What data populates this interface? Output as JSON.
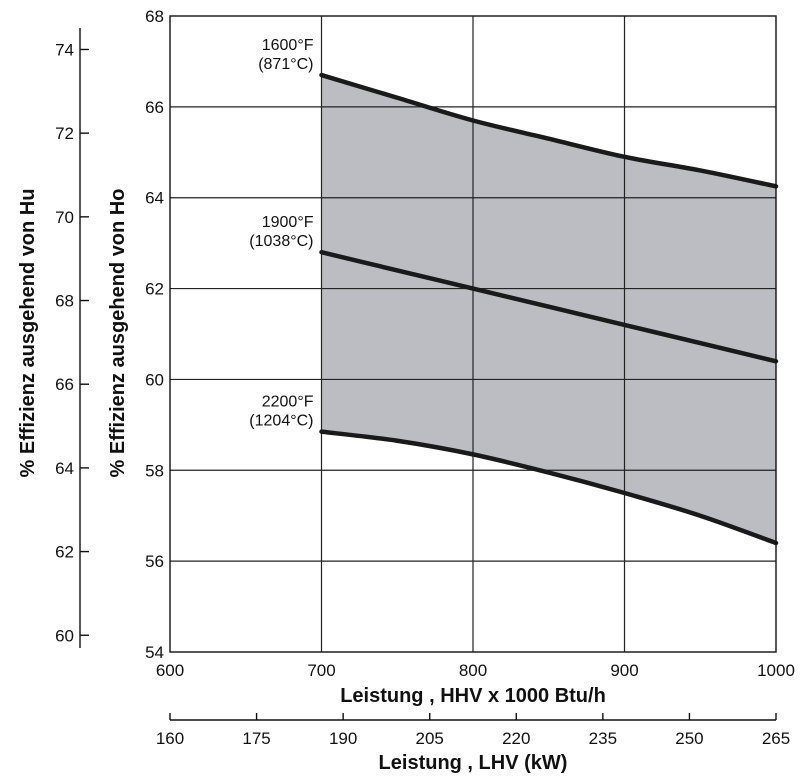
{
  "chart_data": {
    "type": "line",
    "xlabel": "Leistung , HHV x 1000 Btu/h",
    "xlim": [
      600,
      1000
    ],
    "xticks": [
      "600",
      "700",
      "800",
      "900",
      "1000"
    ],
    "ylabel": "% Effizienz ausgehend von Ho",
    "ylim": [
      54,
      68
    ],
    "yticks": [
      "54",
      "56",
      "58",
      "60",
      "62",
      "64",
      "66",
      "68"
    ],
    "ylabel_secondary": "% Effizienz ausgehend von Hu",
    "ylim_secondary": [
      59.6,
      74.8
    ],
    "yticks_secondary": [
      "60",
      "62",
      "64",
      "66",
      "68",
      "70",
      "72",
      "74"
    ],
    "xlabel_secondary": "Leistung , LHV (kW)",
    "xlim_secondary": [
      160,
      265
    ],
    "xticks_secondary": [
      "160",
      "175",
      "190",
      "205",
      "220",
      "235",
      "250",
      "265"
    ],
    "grid": true,
    "shaded_region": {
      "between": [
        "1600°F (871°C)",
        "2200°F (1204°C)"
      ],
      "x": [
        700,
        1000
      ],
      "color": "#bcbdc2"
    },
    "x": [
      700,
      750,
      800,
      850,
      900,
      950,
      1000
    ],
    "series": [
      {
        "name": "1600°F (871°C)",
        "label_line1": "1600°F",
        "label_line2": "(871°C)",
        "values": [
          66.7,
          66.2,
          65.7,
          65.3,
          64.9,
          64.6,
          64.25
        ]
      },
      {
        "name": "1900°F (1038°C)",
        "label_line1": "1900°F",
        "label_line2": "(1038°C)",
        "values": [
          62.8,
          62.4,
          62.0,
          61.6,
          61.2,
          60.8,
          60.4
        ]
      },
      {
        "name": "2200°F (1204°C)",
        "label_line1": "2200°F",
        "label_line2": "(1204°C)",
        "values": [
          58.85,
          58.65,
          58.35,
          57.95,
          57.5,
          57.0,
          56.4
        ]
      }
    ]
  }
}
